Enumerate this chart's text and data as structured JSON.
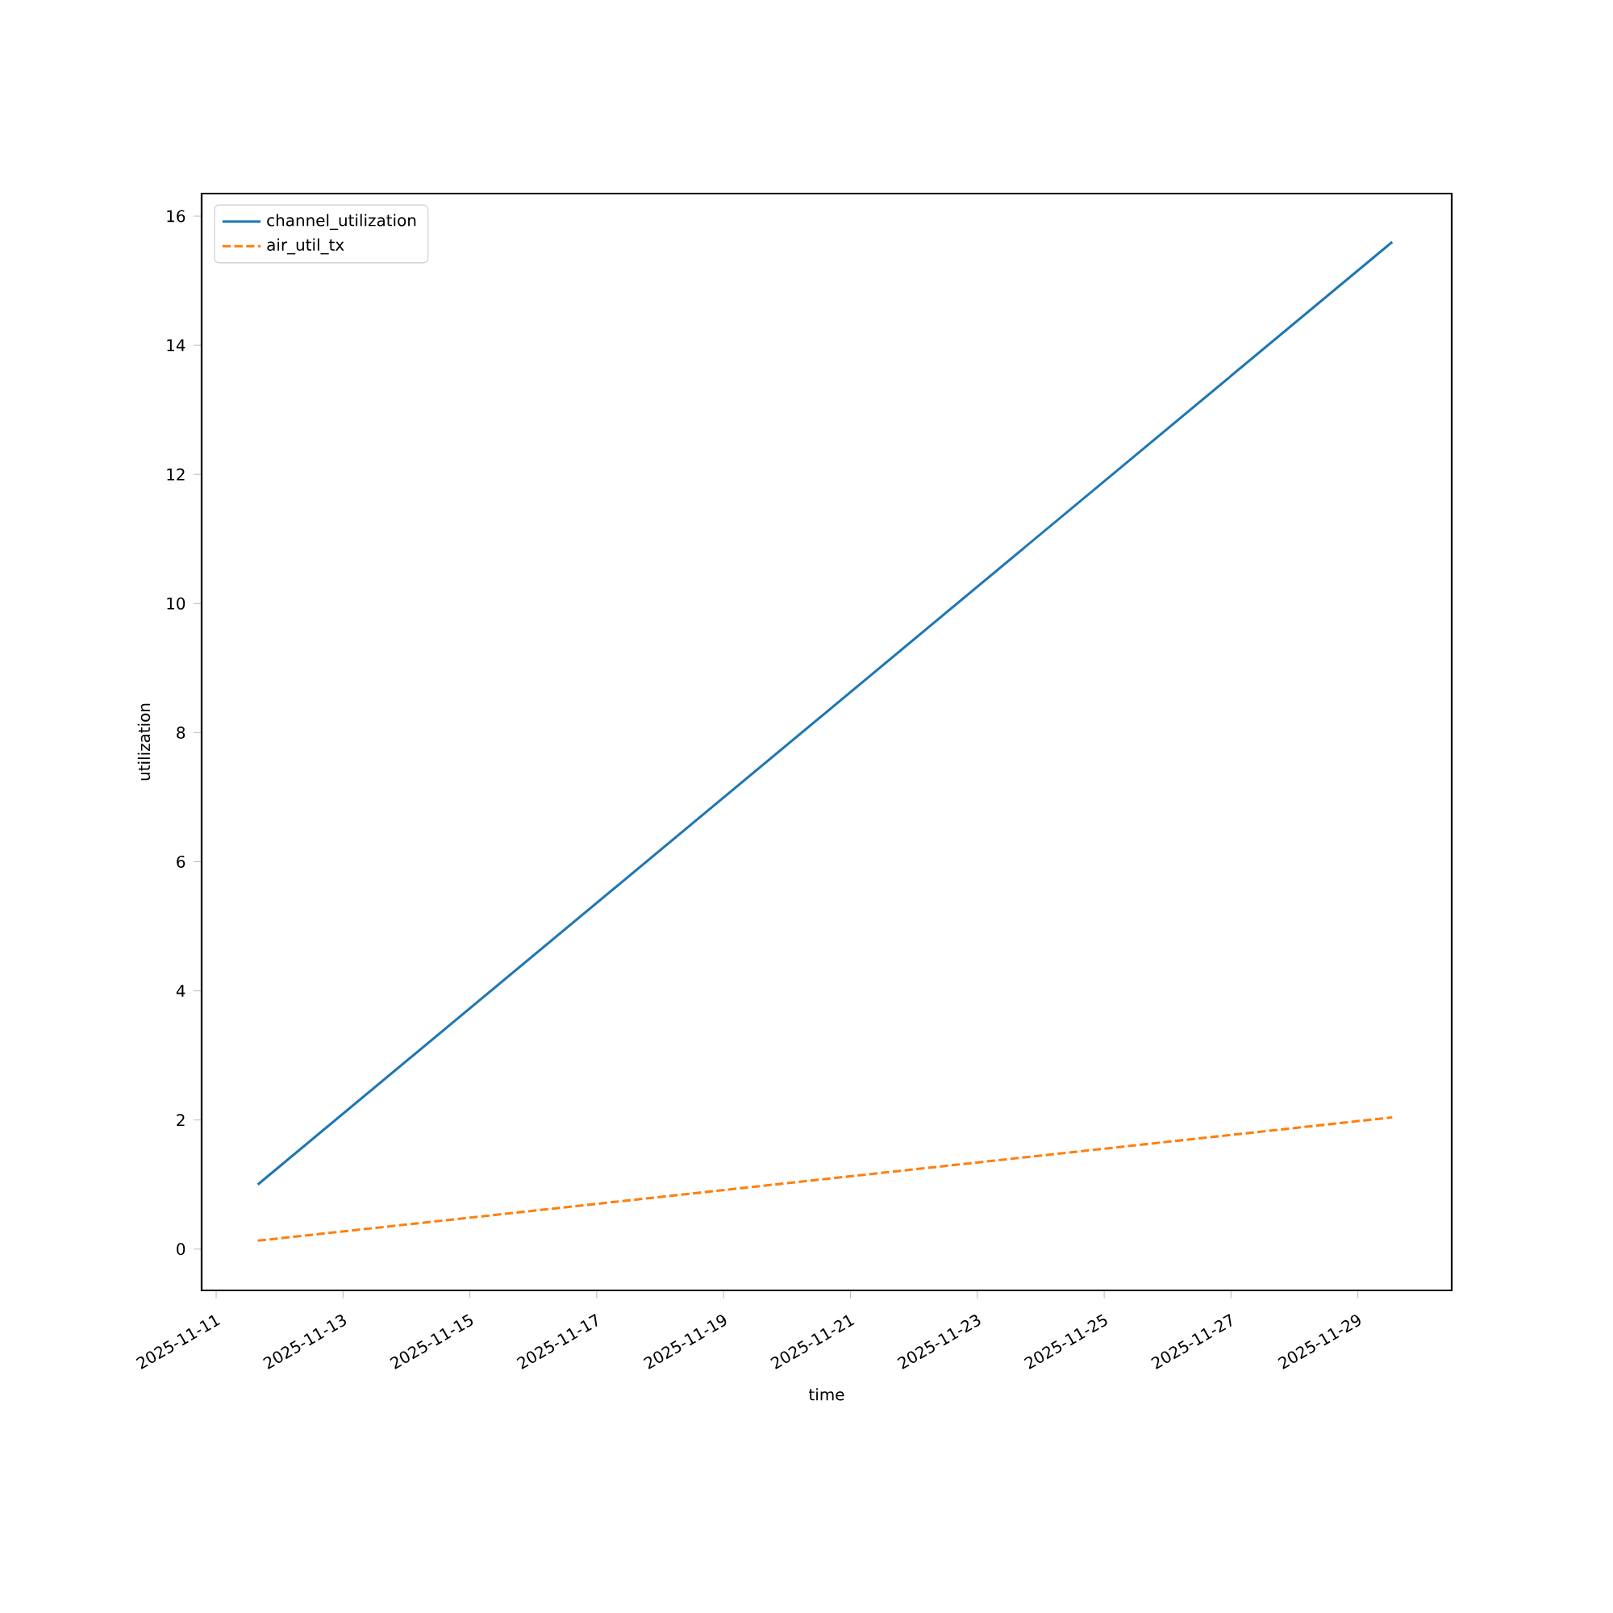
{
  "chart_data": {
    "type": "line",
    "xlabel": "time",
    "ylabel": "utilization",
    "x": [
      "2025-11-11T15:45",
      "2025-11-29T13:00"
    ],
    "series": [
      {
        "name": "channel_utilization",
        "color": "#1f77b4",
        "values": [
          1.0,
          15.6
        ],
        "line_style": "solid"
      },
      {
        "name": "air_util_tx",
        "color": "#ff7f0e",
        "values": [
          0.13,
          2.04
        ],
        "line_style": "dashed"
      }
    ],
    "xlim": [
      "2025-11-10T18:30",
      "2025-11-30T11:30"
    ],
    "xticks": [
      "2025-11-11",
      "2025-11-13",
      "2025-11-15",
      "2025-11-17",
      "2025-11-19",
      "2025-11-21",
      "2025-11-23",
      "2025-11-25",
      "2025-11-27",
      "2025-11-29"
    ],
    "ylim": [
      -0.64,
      16.35
    ],
    "yticks": [
      0,
      2,
      4,
      6,
      8,
      10,
      12,
      14,
      16
    ],
    "legend": "top left",
    "grid": false,
    "marker": "none"
  }
}
